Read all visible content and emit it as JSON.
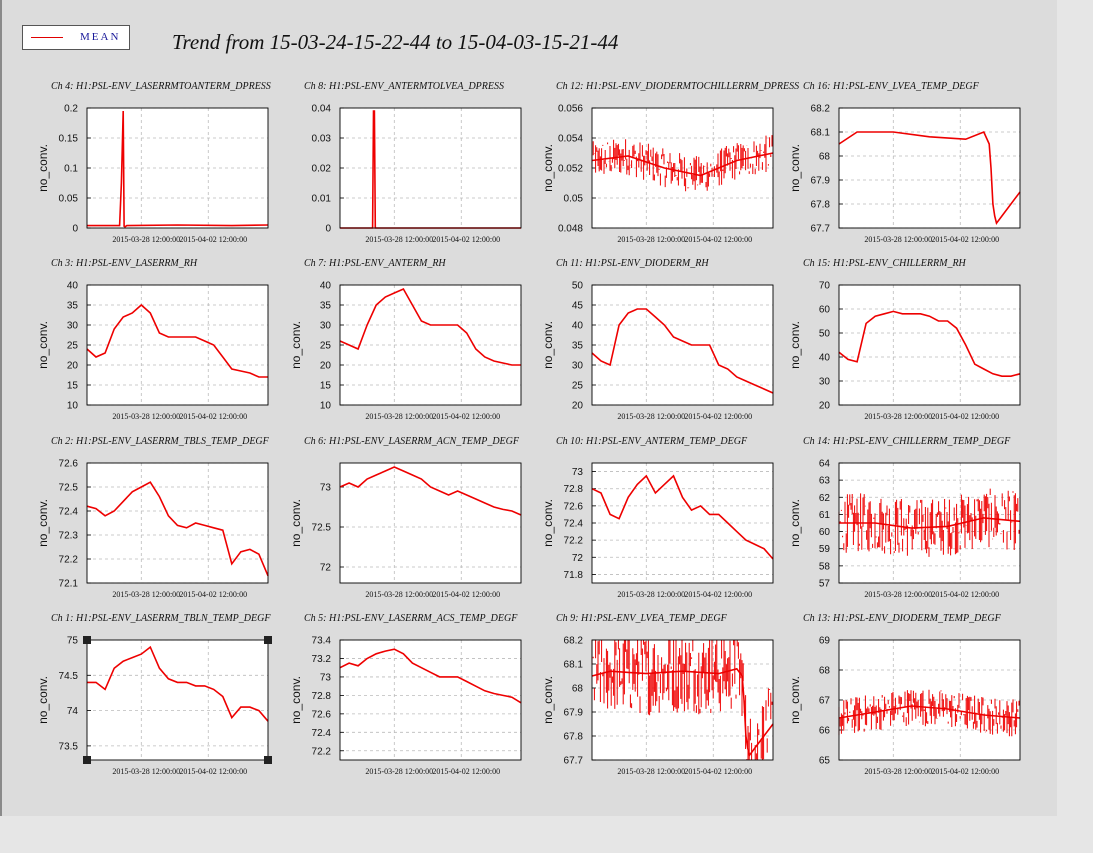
{
  "window": {
    "legend_label": "MEAN",
    "title": "Trend from 15-03-24-15-22-44 to 15-04-03-15-21-44"
  },
  "colors": {
    "series": "#ee0000",
    "grid": "#bbbbbb",
    "legend_text": "#1a1a9a"
  },
  "chart_data": [
    {
      "type": "line",
      "title": "Ch 4: H1:PSL-ENV_LASERRMTOANTERM_DPRESS",
      "ylabel": "no_conv.",
      "ylim": [
        0,
        0.2
      ],
      "yticks": [
        "0",
        "0.05",
        "0.1",
        "0.15",
        "0.2"
      ],
      "xticks": [
        "2015-03-28 12:00:00",
        "2015-04-02 12:00:00"
      ],
      "series": [
        {
          "x": [
            0,
            0.18,
            0.19,
            0.2,
            0.205,
            0.21,
            0.22,
            0.5,
            0.8,
            1
          ],
          "values": [
            0.004,
            0.004,
            0.075,
            0.195,
            0.003,
            0.002,
            0.004,
            0.005,
            0.004,
            0.005
          ]
        }
      ]
    },
    {
      "type": "line",
      "title": "Ch 8: H1:PSL-ENV_ANTERMTOLVEA_DPRESS",
      "ylabel": "",
      "ylim": [
        0,
        0.04
      ],
      "yticks": [
        "0",
        "0.01",
        "0.02",
        "0.03",
        "0.04"
      ],
      "xticks": [
        "2015-03-28 12:00:00",
        "2015-04-02 12:00:00"
      ],
      "series": [
        {
          "x": [
            0,
            0.18,
            0.185,
            0.19,
            0.195,
            0.2,
            1
          ],
          "values": [
            0,
            0,
            0.039,
            0.039,
            0,
            0,
            0
          ]
        }
      ]
    },
    {
      "type": "line",
      "title": "Ch 12: H1:PSL-ENV_DIODERMTOCHILLERRM_DPRESS",
      "ylabel": "no_conv.",
      "ylim": [
        0.048,
        0.056
      ],
      "yticks": [
        "0.048",
        "0.05",
        "0.052",
        "0.054",
        "0.056"
      ],
      "xticks": [
        "2015-03-28 12:00:00",
        "2015-04-02 12:00:00"
      ],
      "series": [
        {
          "x": [
            0,
            0.2,
            0.4,
            0.6,
            0.8,
            1
          ],
          "values": [
            0.0525,
            0.0528,
            0.052,
            0.0515,
            0.0525,
            0.053
          ]
        }
      ]
    },
    {
      "type": "line",
      "title": "Ch 16: H1:PSL-ENV_LVEA_TEMP_DEGF",
      "ylabel": "no_conv.",
      "ylim": [
        67.7,
        68.2
      ],
      "yticks": [
        "67.7",
        "67.8",
        "67.9",
        "68",
        "68.1",
        "68.2"
      ],
      "xticks": [
        "2015-03-28 12:00:00",
        "2015-04-02 12:00:00"
      ],
      "series": [
        {
          "x": [
            0,
            0.1,
            0.3,
            0.5,
            0.7,
            0.8,
            0.83,
            0.84,
            0.85,
            0.86,
            0.87,
            0.9,
            1
          ],
          "values": [
            68.05,
            68.1,
            68.1,
            68.08,
            68.07,
            68.1,
            68.05,
            67.95,
            67.8,
            67.75,
            67.72,
            67.75,
            67.85
          ]
        }
      ]
    },
    {
      "type": "line",
      "title": "Ch 3: H1:PSL-ENV_LASERRM_RH",
      "ylabel": "no_conv.",
      "ylim": [
        10,
        40
      ],
      "yticks": [
        "10",
        "15",
        "20",
        "25",
        "30",
        "35",
        "40"
      ],
      "xticks": [
        "2015-03-28 12:00:00",
        "2015-04-02 12:00:00"
      ],
      "series": [
        {
          "x": [
            0,
            0.05,
            0.1,
            0.15,
            0.2,
            0.25,
            0.3,
            0.35,
            0.4,
            0.45,
            0.5,
            0.55,
            0.6,
            0.65,
            0.7,
            0.75,
            0.8,
            0.85,
            0.9,
            0.95,
            1
          ],
          "values": [
            24,
            22,
            23,
            29,
            32,
            33,
            35,
            33,
            28,
            27,
            27,
            27,
            27,
            26,
            25,
            22,
            19,
            18.5,
            18,
            17,
            17
          ]
        }
      ]
    },
    {
      "type": "line",
      "title": "Ch 7: H1:PSL-ENV_ANTERM_RH",
      "ylabel": "no_conv.",
      "ylim": [
        10,
        40
      ],
      "yticks": [
        "10",
        "15",
        "20",
        "25",
        "30",
        "35",
        "40"
      ],
      "xticks": [
        "2015-03-28 12:00:00",
        "2015-04-02 12:00:00"
      ],
      "series": [
        {
          "x": [
            0,
            0.05,
            0.1,
            0.15,
            0.2,
            0.25,
            0.3,
            0.35,
            0.4,
            0.45,
            0.5,
            0.55,
            0.6,
            0.65,
            0.7,
            0.75,
            0.8,
            0.85,
            0.9,
            0.95,
            1
          ],
          "values": [
            26,
            25,
            24,
            30,
            35,
            37,
            38,
            39,
            35,
            31,
            30,
            30,
            30,
            30,
            28,
            24,
            22,
            21,
            20.5,
            20,
            20
          ]
        }
      ]
    },
    {
      "type": "line",
      "title": "Ch 11: H1:PSL-ENV_DIODERM_RH",
      "ylabel": "no_conv.",
      "ylim": [
        20,
        50
      ],
      "yticks": [
        "20",
        "25",
        "30",
        "35",
        "40",
        "45",
        "50"
      ],
      "xticks": [
        "2015-03-28 12:00:00",
        "2015-04-02 12:00:00"
      ],
      "series": [
        {
          "x": [
            0,
            0.05,
            0.1,
            0.15,
            0.2,
            0.25,
            0.3,
            0.35,
            0.4,
            0.45,
            0.5,
            0.55,
            0.6,
            0.65,
            0.7,
            0.75,
            0.8,
            0.85,
            0.9,
            0.95,
            1
          ],
          "values": [
            33,
            31,
            30,
            40,
            43,
            44,
            44,
            42,
            40,
            37,
            36,
            35,
            35,
            35,
            30,
            29,
            27,
            26,
            25,
            24,
            23
          ]
        }
      ]
    },
    {
      "type": "line",
      "title": "Ch 15: H1:PSL-ENV_CHILLERRM_RH",
      "ylabel": "no_conv.",
      "ylim": [
        20,
        70
      ],
      "yticks": [
        "20",
        "30",
        "40",
        "50",
        "60",
        "70"
      ],
      "xticks": [
        "2015-03-28 12:00:00",
        "2015-04-02 12:00:00"
      ],
      "series": [
        {
          "x": [
            0,
            0.05,
            0.1,
            0.15,
            0.2,
            0.25,
            0.3,
            0.35,
            0.4,
            0.45,
            0.5,
            0.55,
            0.6,
            0.65,
            0.7,
            0.75,
            0.8,
            0.85,
            0.9,
            0.95,
            1
          ],
          "values": [
            42,
            39,
            38,
            54,
            57,
            58,
            59,
            58,
            58,
            58,
            57,
            55,
            55,
            52,
            45,
            37,
            35,
            33,
            32,
            32,
            33
          ]
        }
      ]
    },
    {
      "type": "line",
      "title": "Ch 2: H1:PSL-ENV_LASERRM_TBLS_TEMP_DEGF",
      "ylabel": "no_conv.",
      "ylim": [
        72.1,
        72.6
      ],
      "yticks": [
        "72.1",
        "72.2",
        "72.3",
        "72.4",
        "72.5",
        "72.6"
      ],
      "xticks": [
        "2015-03-28 12:00:00",
        "2015-04-02 12:00:00"
      ],
      "series": [
        {
          "x": [
            0,
            0.05,
            0.1,
            0.15,
            0.2,
            0.25,
            0.3,
            0.35,
            0.4,
            0.45,
            0.5,
            0.55,
            0.6,
            0.65,
            0.7,
            0.75,
            0.8,
            0.85,
            0.9,
            0.95,
            1
          ],
          "values": [
            72.42,
            72.41,
            72.38,
            72.4,
            72.44,
            72.48,
            72.5,
            72.52,
            72.46,
            72.38,
            72.34,
            72.33,
            72.35,
            72.34,
            72.33,
            72.32,
            72.18,
            72.23,
            72.24,
            72.22,
            72.13
          ]
        }
      ]
    },
    {
      "type": "line",
      "title": "Ch 6: H1:PSL-ENV_LASERRM_ACN_TEMP_DEGF",
      "ylabel": "no_conv.",
      "ylim": [
        71.8,
        73.3
      ],
      "yticks": [
        "72",
        "72.5",
        "73"
      ],
      "xticks": [
        "2015-03-28 12:00:00",
        "2015-04-02 12:00:00"
      ],
      "series": [
        {
          "x": [
            0,
            0.05,
            0.1,
            0.15,
            0.2,
            0.25,
            0.3,
            0.35,
            0.4,
            0.45,
            0.5,
            0.55,
            0.6,
            0.65,
            0.7,
            0.75,
            0.8,
            0.85,
            0.9,
            0.95,
            1
          ],
          "values": [
            73.0,
            73.05,
            73.0,
            73.1,
            73.15,
            73.2,
            73.25,
            73.2,
            73.15,
            73.1,
            73.0,
            72.95,
            72.9,
            72.95,
            72.9,
            72.85,
            72.8,
            72.75,
            72.72,
            72.7,
            72.65
          ]
        }
      ]
    },
    {
      "type": "line",
      "title": "Ch 10: H1:PSL-ENV_ANTERM_TEMP_DEGF",
      "ylabel": "no_conv.",
      "ylim": [
        71.7,
        73.1
      ],
      "yticks": [
        "71.8",
        "72",
        "72.2",
        "72.4",
        "72.6",
        "72.8",
        "73"
      ],
      "xticks": [
        "2015-03-28 12:00:00",
        "2015-04-02 12:00:00"
      ],
      "series": [
        {
          "x": [
            0,
            0.05,
            0.1,
            0.15,
            0.2,
            0.25,
            0.3,
            0.35,
            0.4,
            0.45,
            0.5,
            0.55,
            0.6,
            0.65,
            0.7,
            0.75,
            0.8,
            0.85,
            0.9,
            0.95,
            1
          ],
          "values": [
            72.8,
            72.75,
            72.5,
            72.45,
            72.7,
            72.85,
            72.95,
            72.75,
            72.85,
            72.95,
            72.7,
            72.55,
            72.6,
            72.5,
            72.5,
            72.4,
            72.3,
            72.2,
            72.15,
            72.1,
            71.98
          ]
        }
      ]
    },
    {
      "type": "line",
      "title": "Ch 14: H1:PSL-ENV_CHILLERRM_TEMP_DEGF",
      "ylabel": "no_conv.",
      "ylim": [
        57,
        64
      ],
      "yticks": [
        "57",
        "58",
        "59",
        "60",
        "61",
        "62",
        "63",
        "64"
      ],
      "xticks": [
        "2015-03-28 12:00:00",
        "2015-04-02 12:00:00"
      ],
      "series": [
        {
          "x": [
            0,
            0.2,
            0.4,
            0.6,
            0.8,
            1
          ],
          "values": [
            60.5,
            60.5,
            60.2,
            60.3,
            60.8,
            60.6
          ]
        }
      ]
    },
    {
      "type": "line",
      "title": "Ch 1: H1:PSL-ENV_LASERRM_TBLN_TEMP_DEGF",
      "ylabel": "no_conv.",
      "ylim": [
        73.3,
        75
      ],
      "yticks": [
        "73.5",
        "74",
        "74.5",
        "75"
      ],
      "xticks": [
        "2015-03-28 12:00:00",
        "2015-04-02 12:00:00"
      ],
      "series": [
        {
          "x": [
            0,
            0.05,
            0.1,
            0.15,
            0.2,
            0.25,
            0.3,
            0.35,
            0.4,
            0.45,
            0.5,
            0.55,
            0.6,
            0.65,
            0.7,
            0.75,
            0.8,
            0.85,
            0.9,
            0.95,
            1
          ],
          "values": [
            74.4,
            74.4,
            74.3,
            74.6,
            74.7,
            74.75,
            74.8,
            74.9,
            74.6,
            74.45,
            74.4,
            74.4,
            74.35,
            74.35,
            74.3,
            74.2,
            73.9,
            74.05,
            74.05,
            74.0,
            73.85
          ]
        }
      ]
    },
    {
      "type": "line",
      "title": "Ch 5: H1:PSL-ENV_LASERRM_ACS_TEMP_DEGF",
      "ylabel": "no_conv.",
      "ylim": [
        72.1,
        73.4
      ],
      "yticks": [
        "72.2",
        "72.4",
        "72.6",
        "72.8",
        "73",
        "73.2",
        "73.4"
      ],
      "xticks": [
        "2015-03-28 12:00:00",
        "2015-04-02 12:00:00"
      ],
      "series": [
        {
          "x": [
            0,
            0.05,
            0.1,
            0.15,
            0.2,
            0.25,
            0.3,
            0.35,
            0.4,
            0.45,
            0.5,
            0.55,
            0.6,
            0.65,
            0.7,
            0.75,
            0.8,
            0.85,
            0.9,
            0.95,
            1
          ],
          "values": [
            73.1,
            73.15,
            73.12,
            73.2,
            73.25,
            73.28,
            73.3,
            73.25,
            73.15,
            73.1,
            73.05,
            73.0,
            73.0,
            73.0,
            72.95,
            72.9,
            72.85,
            72.82,
            72.8,
            72.78,
            72.72
          ]
        }
      ]
    },
    {
      "type": "line",
      "title": "Ch 9: H1:PSL-ENV_LVEA_TEMP_DEGF",
      "ylabel": "no_conv.",
      "ylim": [
        67.7,
        68.2
      ],
      "yticks": [
        "67.7",
        "67.8",
        "67.9",
        "68",
        "68.1",
        "68.2"
      ],
      "xticks": [
        "2015-03-28 12:00:00",
        "2015-04-02 12:00:00"
      ],
      "series": [
        {
          "x": [
            0,
            0.1,
            0.3,
            0.5,
            0.7,
            0.8,
            0.83,
            0.84,
            0.85,
            0.86,
            0.87,
            0.9,
            1
          ],
          "values": [
            68.05,
            68.07,
            68.06,
            68.07,
            68.06,
            68.08,
            68.05,
            67.95,
            67.8,
            67.75,
            67.72,
            67.75,
            67.85
          ]
        }
      ]
    },
    {
      "type": "line",
      "title": "Ch 13: H1:PSL-ENV_DIODERM_TEMP_DEGF",
      "ylabel": "no_conv.",
      "ylim": [
        65,
        69
      ],
      "yticks": [
        "65",
        "66",
        "67",
        "68",
        "69"
      ],
      "xticks": [
        "2015-03-28 12:00:00",
        "2015-04-02 12:00:00"
      ],
      "series": [
        {
          "x": [
            0,
            0.2,
            0.4,
            0.6,
            0.8,
            1
          ],
          "values": [
            66.4,
            66.6,
            66.8,
            66.7,
            66.5,
            66.4
          ]
        }
      ]
    }
  ]
}
